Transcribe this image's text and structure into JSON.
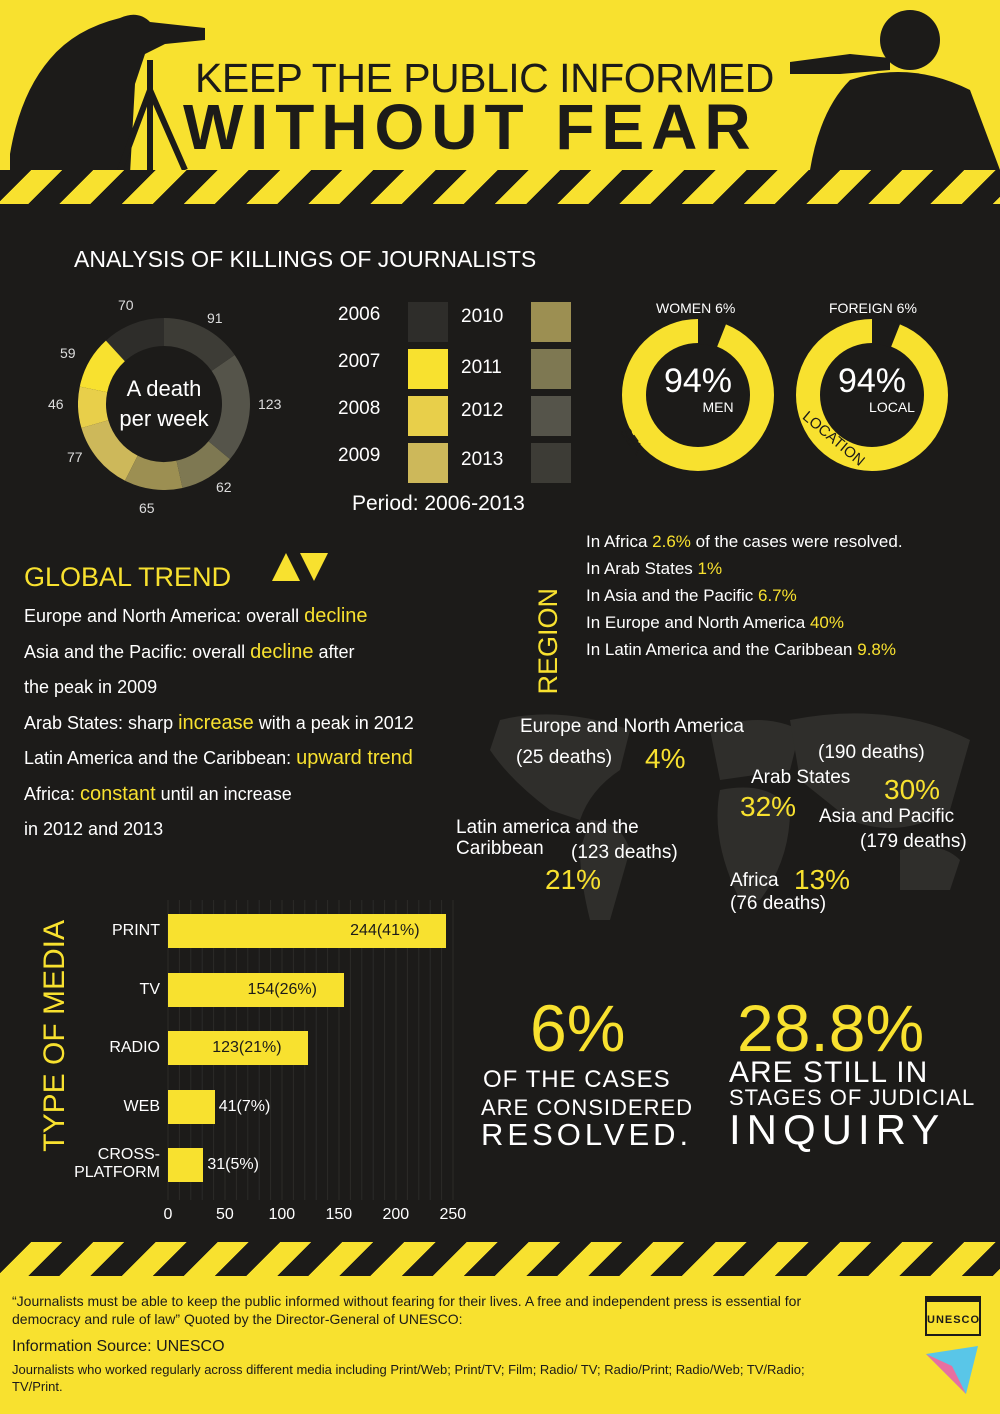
{
  "header": {
    "title_line1": "KEEP THE PUBLIC INFORMED",
    "title_line2": "WITHOUT FEAR"
  },
  "analysis": {
    "title": "ANALYSIS OF KILLINGS OF JOURNALISTS",
    "donut_center": [
      "A death",
      "per week"
    ],
    "donut_values": [
      "70",
      "91",
      "123",
      "62",
      "65",
      "77",
      "46",
      "59"
    ],
    "years_left": [
      "2006",
      "2007",
      "2008",
      "2009"
    ],
    "years_right": [
      "2010",
      "2011",
      "2012",
      "2013"
    ],
    "period": "Period: 2006-2013"
  },
  "chart_data": [
    {
      "type": "pie",
      "title": "",
      "center_text": "A death per week",
      "categories": [
        "2006",
        "2007",
        "2008",
        "2009",
        "2010",
        "2011",
        "2012",
        "2013"
      ],
      "values": [
        70,
        59,
        46,
        77,
        65,
        62,
        123,
        91
      ],
      "colors": [
        "#2e2d2a",
        "#f8e12f",
        "#e8cf4a",
        "#cdb85a",
        "#9c8f52",
        "#7e7852",
        "#55544a",
        "#3d3c36"
      ]
    },
    {
      "type": "bar",
      "title": "",
      "ylabel": "TYPE OF MEDIA",
      "categories": [
        "PRINT",
        "TV",
        "RADIO",
        "WEB",
        "CROSS-PLATFORM"
      ],
      "values": [
        244,
        154,
        123,
        41,
        31
      ],
      "data_labels": [
        "244(41%)",
        "154(26%)",
        "123(21%)",
        "41(7%)",
        "31(5%)"
      ],
      "xticks": [
        "0",
        "50",
        "100",
        "150",
        "200",
        "250"
      ],
      "xlim": [
        0,
        250
      ],
      "orientation": "horizontal"
    }
  ],
  "rings": {
    "sex": {
      "top": "WOMEN 6%",
      "big": "94%",
      "sub": "MEN",
      "arc_label": "SEX",
      "value": 0.94
    },
    "location": {
      "top": "FOREIGN 6%",
      "big": "94%",
      "sub": "LOCAL",
      "arc_label": "LOCATION",
      "value": 0.94
    }
  },
  "global_trend": {
    "title": "GLOBAL TREND",
    "lines": [
      {
        "pre": "Europe and North America: overall ",
        "key": "decline",
        "post": ""
      },
      {
        "pre": "Asia and the Pacific: overall ",
        "key": "decline",
        "post": " after"
      },
      {
        "pre": "the peak in 2009",
        "key": "",
        "post": ""
      },
      {
        "pre": "Arab States: sharp ",
        "key": "increase",
        "post": " with a peak in 2012"
      },
      {
        "pre": "Latin America and the Caribbean: ",
        "key": "upward trend",
        "post": ""
      },
      {
        "pre": "Africa: ",
        "key": "constant",
        "post": " until an increase"
      },
      {
        "pre": "in 2012 and 2013",
        "key": "",
        "post": ""
      }
    ]
  },
  "region": {
    "label": "REGION",
    "lines": [
      {
        "pre": "In Africa ",
        "key": "2.6%",
        "post": " of the cases were resolved."
      },
      {
        "pre": "In Arab States ",
        "key": "1%",
        "post": ""
      },
      {
        "pre": "In Asia and the Pacific ",
        "key": "6.7%",
        "post": ""
      },
      {
        "pre": "In Europe and North America ",
        "key": "40%",
        "post": ""
      },
      {
        "pre": "In Latin America and the Caribbean ",
        "key": "9.8%",
        "post": ""
      }
    ]
  },
  "map": {
    "europe_name": "Europe and North America",
    "europe_deaths": "(25 deaths)",
    "europe_pct": "4%",
    "arab_deaths": "(190 deaths)",
    "arab_name": "Arab States",
    "arab_pct": "32%",
    "asia_pct": "30%",
    "asia_name": "Asia and Pacific",
    "asia_deaths": "(179 deaths)",
    "latam_name1": "Latin america and the",
    "latam_name2": "Caribbean",
    "latam_deaths": "(123 deaths)",
    "latam_pct": "21%",
    "africa_name": "Africa",
    "africa_pct": "13%",
    "africa_deaths": "(76 deaths)"
  },
  "media": {
    "label": "TYPE OF MEDIA",
    "cat_crossplatform": [
      "CROSS-",
      "PLATFORM"
    ]
  },
  "stats": {
    "resolved_big": "6%",
    "resolved_l1": "OF THE CASES",
    "resolved_l2": "ARE CONSIDERED",
    "resolved_l3": "RESOLVED.",
    "inquiry_big": "28.8%",
    "inquiry_l1": "ARE STILL IN",
    "inquiry_l2": "STAGES OF JUDICIAL",
    "inquiry_l3": "INQUIRY"
  },
  "footer": {
    "quote": "“Journalists must be able to keep the public informed without fearing for their lives. A free and independent press is essential for democracy and rule of law” Quoted by the Director-General of UNESCO:",
    "source": "Information Source: UNESCO",
    "note": "Journalists who worked regularly across different media including Print/Web; Print/TV; Film; Radio/ TV; Radio/Print; Radio/Web; TV/Radio; TV/Print.",
    "logo": "UNESCO"
  },
  "colors": {
    "accent": "#f8e12f",
    "background": "#1c1b19"
  }
}
